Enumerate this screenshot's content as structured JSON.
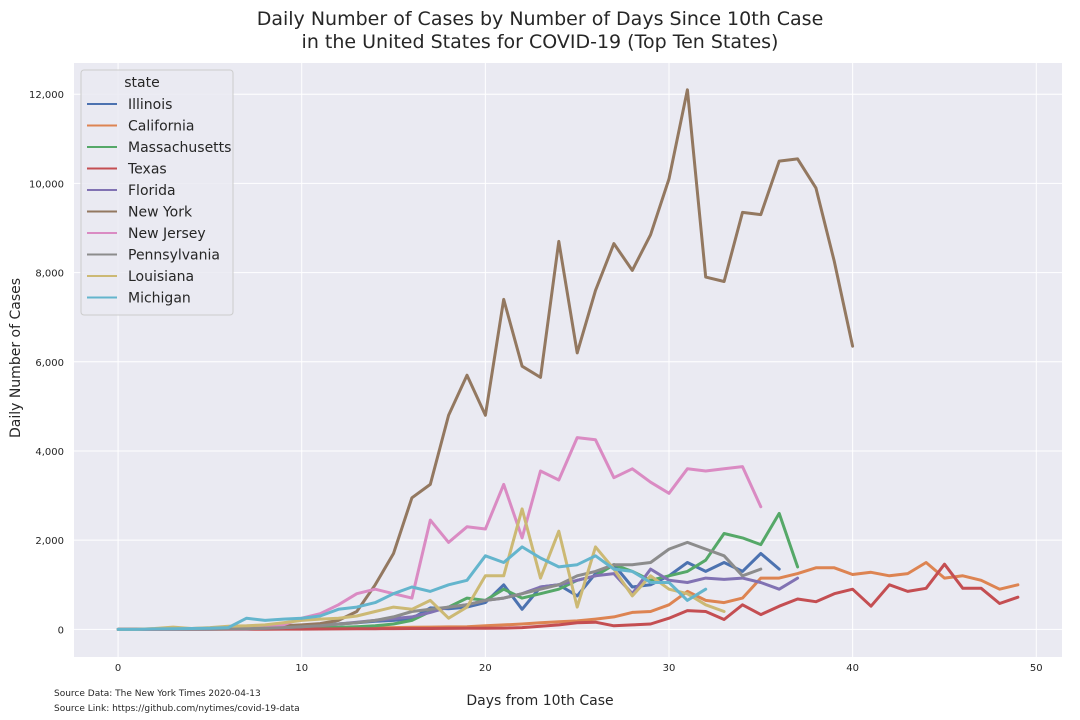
{
  "chart_data": {
    "type": "line",
    "title_line1": "Daily Number of Cases by Number of Days Since 10th Case",
    "title_line2": "in the United States for COVID-19 (Top Ten States)",
    "xlabel": "Days from 10th Case",
    "ylabel": "Daily Number of Cases",
    "xlim": [
      -2.4,
      51.4
    ],
    "ylim": [
      -620,
      12700
    ],
    "xticks": [
      0,
      10,
      20,
      30,
      40,
      50
    ],
    "xtick_labels": [
      "0",
      "10",
      "20",
      "30",
      "40",
      "50"
    ],
    "yticks": [
      0,
      2000,
      4000,
      6000,
      8000,
      10000,
      12000
    ],
    "ytick_labels": [
      "0",
      "2,000",
      "4,000",
      "6,000",
      "8,000",
      "10,000",
      "12,000"
    ],
    "grid": true,
    "legend": {
      "title": "state",
      "placement": "upper-left"
    },
    "series": [
      {
        "name": "Illinois",
        "color": "#4c72b0",
        "values": [
          0,
          0,
          2,
          5,
          8,
          10,
          15,
          22,
          25,
          45,
          60,
          90,
          120,
          150,
          180,
          200,
          240,
          480,
          460,
          500,
          600,
          1000,
          450,
          950,
          1000,
          750,
          1250,
          1450,
          950,
          1000,
          1200,
          1500,
          1300,
          1500,
          1300,
          1700,
          1350
        ]
      },
      {
        "name": "California",
        "color": "#dd8452",
        "values": [
          0,
          1,
          2,
          3,
          4,
          5,
          6,
          8,
          10,
          12,
          15,
          18,
          22,
          28,
          35,
          40,
          45,
          50,
          55,
          60,
          80,
          100,
          120,
          150,
          170,
          190,
          230,
          280,
          380,
          400,
          550,
          850,
          650,
          600,
          700,
          1150,
          1150,
          1250,
          1380,
          1380,
          1230,
          1280,
          1200,
          1250,
          1500,
          1150,
          1200,
          1100,
          900,
          1000
        ]
      },
      {
        "name": "Massachusetts",
        "color": "#55a868",
        "values": [
          0,
          0,
          1,
          2,
          3,
          5,
          8,
          12,
          15,
          20,
          25,
          35,
          45,
          60,
          80,
          120,
          200,
          400,
          500,
          700,
          650,
          900,
          700,
          800,
          900,
          1100,
          1200,
          1450,
          1300,
          1100,
          1200,
          1300,
          1550,
          2150,
          2050,
          1900,
          2600,
          1400
        ]
      },
      {
        "name": "Texas",
        "color": "#c44e52",
        "values": [
          0,
          0,
          1,
          1,
          2,
          2,
          3,
          3,
          4,
          5,
          6,
          8,
          10,
          12,
          14,
          16,
          18,
          20,
          22,
          24,
          25,
          28,
          40,
          70,
          100,
          150,
          160,
          80,
          100,
          120,
          250,
          420,
          400,
          220,
          550,
          330,
          520,
          680,
          620,
          800,
          900,
          520,
          1000,
          850,
          920,
          1460,
          920,
          920,
          580,
          720
        ]
      },
      {
        "name": "Florida",
        "color": "#8172b3",
        "values": [
          0,
          0,
          1,
          2,
          4,
          6,
          10,
          15,
          25,
          40,
          60,
          90,
          120,
          160,
          200,
          240,
          280,
          380,
          500,
          550,
          650,
          700,
          800,
          950,
          1000,
          1100,
          1200,
          1250,
          800,
          1350,
          1100,
          1050,
          1150,
          1120,
          1150,
          1050,
          900,
          1150
        ]
      },
      {
        "name": "New York",
        "color": "#937860",
        "values": [
          0,
          5,
          10,
          15,
          20,
          25,
          30,
          35,
          50,
          80,
          100,
          130,
          200,
          400,
          1000,
          1700,
          2950,
          3250,
          4800,
          5700,
          4800,
          7400,
          5900,
          5650,
          8700,
          6200,
          7600,
          8650,
          8050,
          8850,
          10100,
          12100,
          7900,
          7800,
          9350,
          9300,
          10500,
          10550,
          9900,
          8250,
          6350
        ]
      },
      {
        "name": "New Jersey",
        "color": "#da8bc3",
        "values": [
          0,
          0,
          1,
          2,
          3,
          5,
          8,
          15,
          40,
          100,
          250,
          350,
          550,
          800,
          900,
          800,
          700,
          2450,
          1950,
          2300,
          2250,
          3250,
          2050,
          3550,
          3350,
          4300,
          4250,
          3400,
          3600,
          3300,
          3050,
          3600,
          3550,
          3600,
          3650,
          2750
        ]
      },
      {
        "name": "Pennsylvania",
        "color": "#8c8c8c",
        "values": [
          0,
          0,
          1,
          2,
          3,
          5,
          10,
          15,
          25,
          40,
          60,
          80,
          120,
          150,
          200,
          280,
          400,
          450,
          500,
          550,
          650,
          700,
          800,
          900,
          1000,
          1200,
          1300,
          1450,
          1450,
          1500,
          1800,
          1950,
          1800,
          1650,
          1200,
          1350
        ]
      },
      {
        "name": "Louisiana",
        "color": "#ccb974",
        "values": [
          0,
          0,
          20,
          50,
          20,
          40,
          70,
          80,
          100,
          150,
          200,
          230,
          250,
          300,
          400,
          500,
          450,
          650,
          250,
          500,
          1200,
          1200,
          2700,
          1150,
          2200,
          500,
          1850,
          1350,
          750,
          1200,
          900,
          800,
          550,
          400
        ]
      },
      {
        "name": "Michigan",
        "color": "#64b5cd",
        "values": [
          0,
          0,
          10,
          15,
          20,
          25,
          40,
          250,
          200,
          230,
          250,
          300,
          450,
          500,
          600,
          800,
          950,
          850,
          1000,
          1100,
          1650,
          1500,
          1850,
          1600,
          1400,
          1450,
          1650,
          1350,
          1300,
          1050,
          1050,
          650,
          900
        ]
      }
    ]
  },
  "source": {
    "data_note": "Source Data: The New York Times 2020-04-13",
    "link_note": "Source Link: https://github.com/nytimes/covid-19-data"
  }
}
